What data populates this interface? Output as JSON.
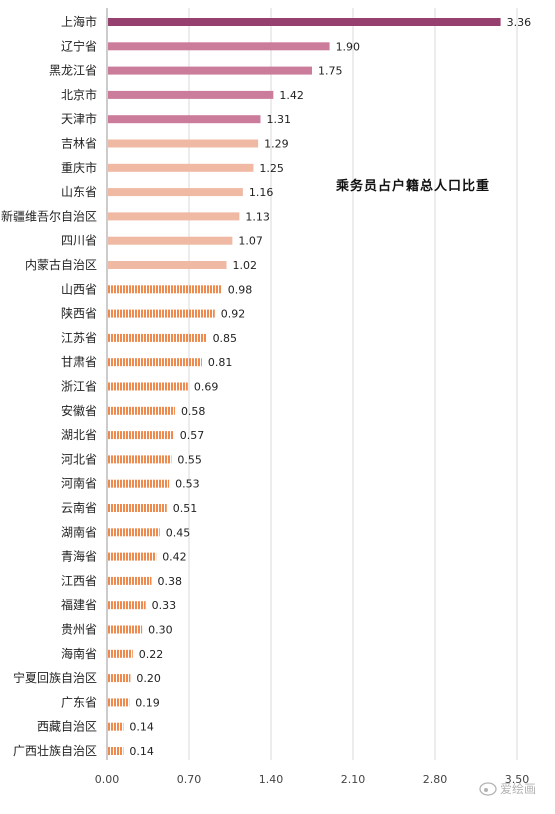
{
  "chart_data": {
    "type": "bar",
    "orientation": "horizontal",
    "title": "乘务员占户籍总人口比重",
    "categories": [
      "上海市",
      "辽宁省",
      "黑龙江省",
      "北京市",
      "天津市",
      "吉林省",
      "重庆市",
      "山东省",
      "新疆维吾尔自治区",
      "四川省",
      "内蒙古自治区",
      "山西省",
      "陕西省",
      "江苏省",
      "甘肃省",
      "浙江省",
      "安徽省",
      "湖北省",
      "河北省",
      "河南省",
      "云南省",
      "湖南省",
      "青海省",
      "江西省",
      "福建省",
      "贵州省",
      "海南省",
      "宁夏回族自治区",
      "广东省",
      "西藏自治区",
      "广西壮族自治区"
    ],
    "values": [
      3.36,
      1.9,
      1.75,
      1.42,
      1.31,
      1.29,
      1.25,
      1.16,
      1.13,
      1.07,
      1.02,
      0.98,
      0.92,
      0.85,
      0.81,
      0.69,
      0.58,
      0.57,
      0.55,
      0.53,
      0.51,
      0.45,
      0.42,
      0.38,
      0.33,
      0.3,
      0.22,
      0.2,
      0.19,
      0.14,
      0.14
    ],
    "value_labels": [
      "3.36",
      "1.90",
      "1.75",
      "1.42",
      "1.31",
      "1.29",
      "1.25",
      "1.16",
      "1.13",
      "1.07",
      "1.02",
      "0.98",
      "0.92",
      "0.85",
      "0.81",
      "0.69",
      "0.58",
      "0.57",
      "0.55",
      "0.53",
      "0.51",
      "0.45",
      "0.42",
      "0.38",
      "0.33",
      "0.30",
      "0.22",
      "0.20",
      "0.19",
      "0.14",
      "0.14"
    ],
    "xlim": [
      0,
      3.5
    ],
    "xticks": [
      "0.00",
      "0.70",
      "1.40",
      "2.10",
      "2.80",
      "3.50"
    ],
    "grid": "vertical",
    "legend": "none",
    "colors": {
      "rank1": "#96406f",
      "rank2_5": "#cc7c9b",
      "rank6_11": "#efb9a4",
      "rank12_31": "#ef8a4f",
      "gridline": "#d9d9d9",
      "axis": "#999999"
    }
  },
  "watermark": {
    "text": "爱绘画"
  }
}
